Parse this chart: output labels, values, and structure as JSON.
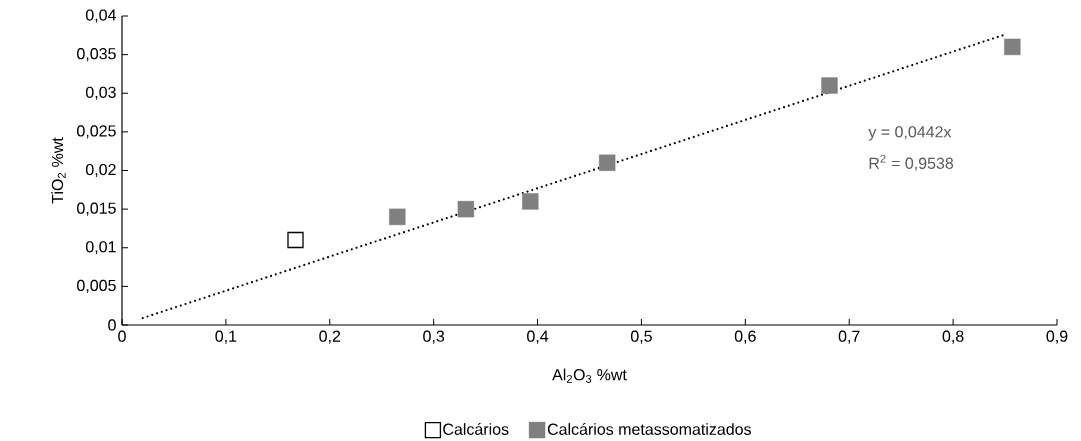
{
  "chart_data": {
    "type": "scatter",
    "xlabel": "Al$_{2}$O$_{3}$ %wt",
    "ylabel": "TiO$_{2}$ %wt",
    "xlim": [
      0,
      0.9
    ],
    "ylim": [
      0,
      0.04
    ],
    "xticks": [
      0,
      {
        "value": 0.1,
        "label": "0,1"
      },
      {
        "value": 0.2,
        "label": "0,2"
      },
      {
        "value": 0.3,
        "label": "0,3"
      },
      {
        "value": 0.4,
        "label": "0,4"
      },
      {
        "value": 0.5,
        "label": "0,5"
      },
      {
        "value": 0.6,
        "label": "0,6"
      },
      {
        "value": 0.7,
        "label": "0,7"
      },
      {
        "value": 0.8,
        "label": "0,8"
      },
      {
        "value": 0.9,
        "label": "0,9"
      }
    ],
    "yticks": [
      0,
      {
        "value": 0.005,
        "label": "0,005"
      },
      {
        "value": 0.01,
        "label": "0,01"
      },
      {
        "value": 0.015,
        "label": "0,015"
      },
      {
        "value": 0.02,
        "label": "0,02"
      },
      {
        "value": 0.025,
        "label": "0,025"
      },
      {
        "value": 0.03,
        "label": "0,03"
      },
      {
        "value": 0.035,
        "label": "0,035"
      },
      {
        "value": 0.04,
        "label": "0,04"
      }
    ],
    "legend": "bottom",
    "marker": "square",
    "series": [
      {
        "name": "Calcários",
        "color": "#000000",
        "x": [
          0.167
        ],
        "values": [
          0.011
        ]
      },
      {
        "name": "Calcários metassomatizados",
        "color": "#808080",
        "x": [
          0.265,
          0.331,
          0.393,
          0.467,
          0.681,
          0.857
        ],
        "values": [
          0.014,
          0.015,
          0.016,
          0.021,
          0.031,
          0.036
        ]
      },
      {
        "type": "line",
        "color": "#000000",
        "marker": "none",
        "line_style": "dotted",
        "x": [
          0.02,
          0.85
        ],
        "values": [
          0.0009,
          0.0376
        ]
      }
    ],
    "annotations": [
      "y = 0,0442x",
      "R$^{2}$ = 0,9538"
    ]
  }
}
